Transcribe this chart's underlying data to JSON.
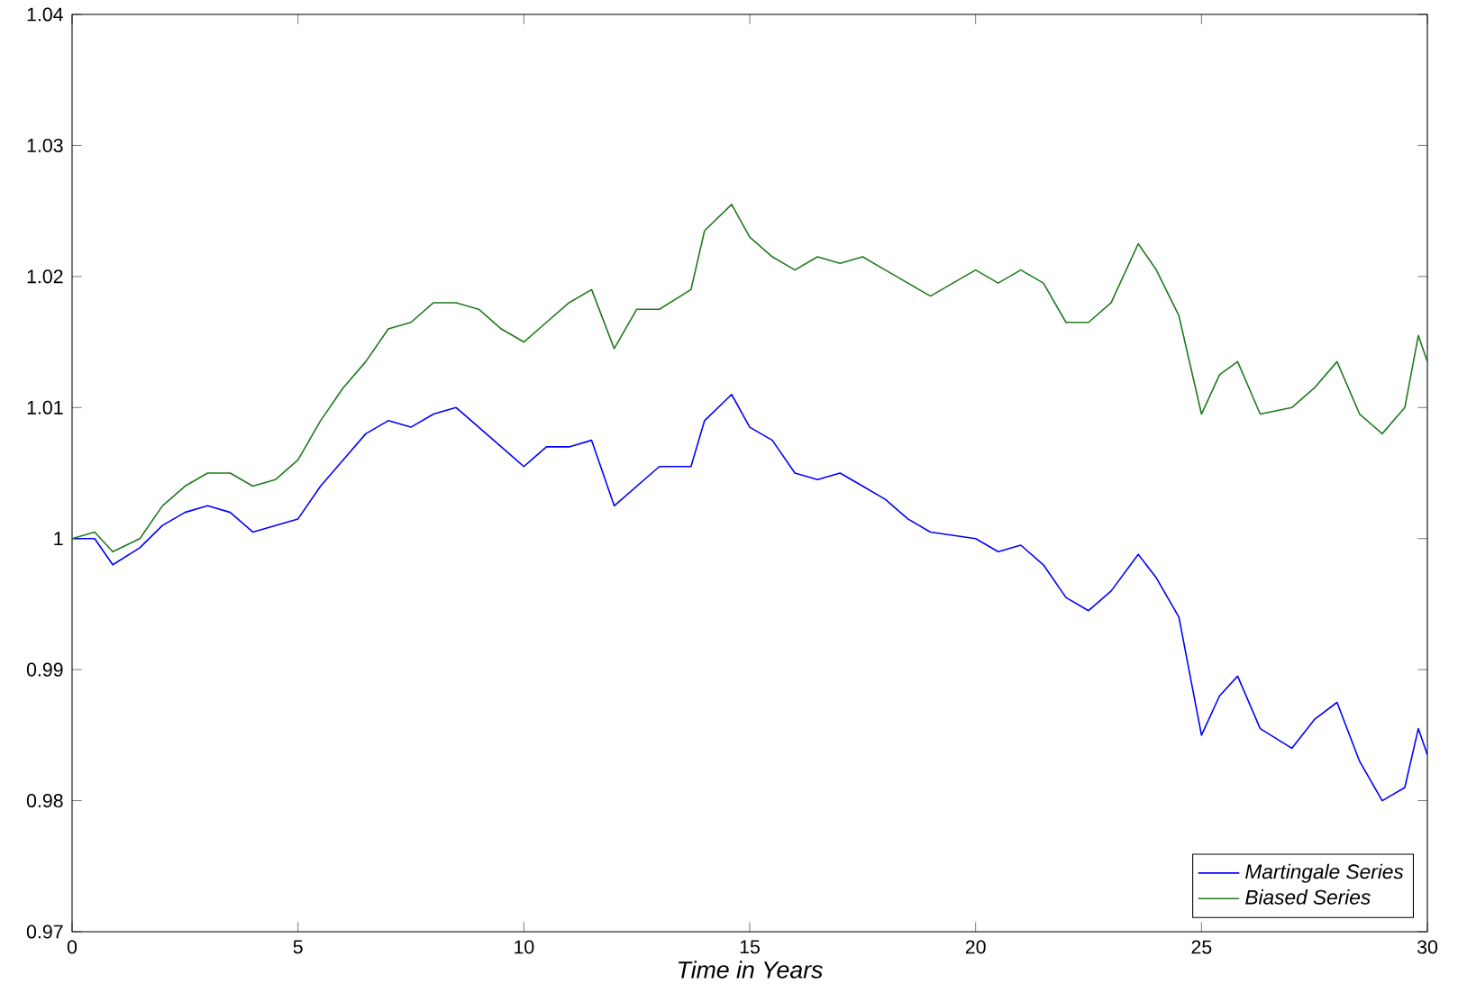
{
  "chart_data": {
    "type": "line",
    "xlabel": "*Time in Years*",
    "x": [
      0,
      0.5,
      0.9,
      1.5,
      2,
      2.5,
      3,
      3.5,
      4,
      4.5,
      5,
      5.5,
      6,
      6.5,
      7,
      7.5,
      8,
      8.5,
      9,
      9.5,
      10,
      10.5,
      11,
      11.5,
      12,
      12.5,
      13,
      13.7,
      14,
      14.6,
      15,
      15.5,
      16,
      16.5,
      17,
      17.5,
      18,
      18.5,
      19,
      20,
      20.5,
      21,
      21.5,
      22,
      22.5,
      23,
      23.6,
      24,
      24.5,
      25,
      25.4,
      25.8,
      26.3,
      27,
      27.5,
      28,
      28.5,
      29,
      29.5,
      29.8,
      30
    ],
    "series": [
      {
        "name": "*Martingale Series*",
        "color": "#0000ff",
        "values": [
          1.0,
          1.0,
          0.998,
          0.9993,
          1.001,
          1.002,
          1.0025,
          1.002,
          1.0005,
          1.001,
          1.0015,
          1.004,
          1.006,
          1.008,
          1.009,
          1.0085,
          1.0095,
          1.01,
          1.0085,
          1.007,
          1.0055,
          1.007,
          1.007,
          1.0075,
          1.0025,
          1.004,
          1.0055,
          1.0055,
          1.009,
          1.011,
          1.0085,
          1.0075,
          1.005,
          1.0045,
          1.005,
          1.004,
          1.003,
          1.0015,
          1.0005,
          1.0,
          0.999,
          0.9995,
          0.998,
          0.9955,
          0.9945,
          0.996,
          0.9988,
          0.997,
          0.994,
          0.985,
          0.988,
          0.9895,
          0.9855,
          0.984,
          0.9862,
          0.9875,
          0.983,
          0.98,
          0.981,
          0.9855,
          0.9835
        ]
      },
      {
        "name": "*Biased Series*",
        "color": "#1f7a1f",
        "values": [
          1.0,
          1.0005,
          0.999,
          1.0,
          1.0025,
          1.004,
          1.005,
          1.005,
          1.004,
          1.0045,
          1.006,
          1.009,
          1.0115,
          1.0135,
          1.016,
          1.0165,
          1.018,
          1.018,
          1.0175,
          1.016,
          1.015,
          1.0165,
          1.018,
          1.019,
          1.0145,
          1.0175,
          1.0175,
          1.019,
          1.0235,
          1.0255,
          1.023,
          1.0215,
          1.0205,
          1.0215,
          1.021,
          1.0215,
          1.0205,
          1.0195,
          1.0185,
          1.0205,
          1.0195,
          1.0205,
          1.0195,
          1.0165,
          1.0165,
          1.018,
          1.0225,
          1.0205,
          1.017,
          1.0095,
          1.0125,
          1.0135,
          1.0095,
          1.01,
          1.0115,
          1.0135,
          1.0095,
          1.008,
          1.01,
          1.0155,
          1.0135
        ]
      }
    ],
    "xlim": [
      0,
      30
    ],
    "ylim": [
      0.97,
      1.04
    ],
    "xticks": [
      0,
      5,
      10,
      15,
      20,
      25,
      30
    ],
    "yticks": [
      0.97,
      0.98,
      0.99,
      1,
      1.01,
      1.02,
      1.03,
      1.04
    ],
    "legend": "bottom right",
    "grid": false
  }
}
